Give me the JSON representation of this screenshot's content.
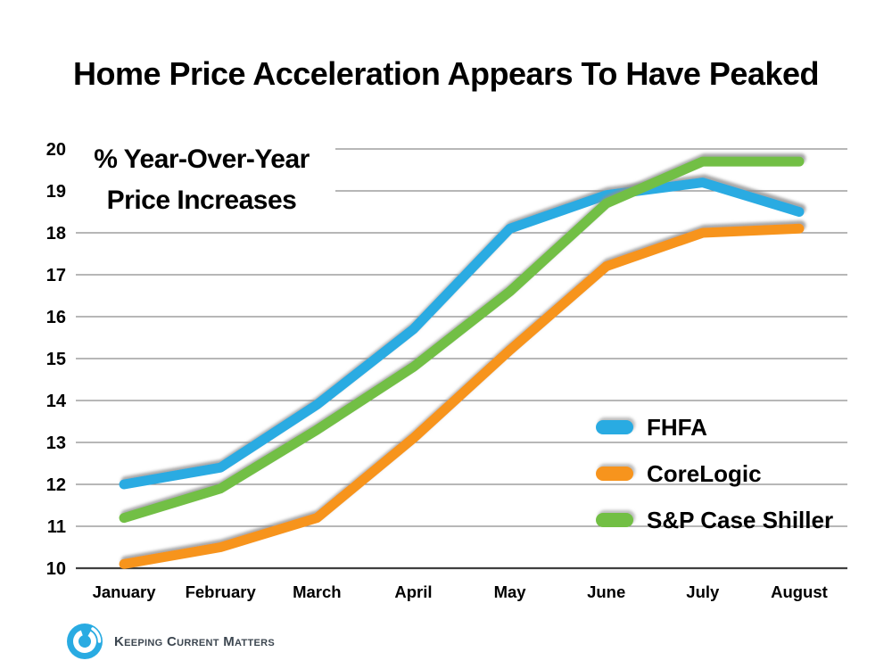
{
  "chart_data": {
    "type": "line",
    "title": "Home Price Acceleration Appears To Have Peaked",
    "annotation_line1": "% Year-Over-Year",
    "annotation_line2": "Price Increases",
    "categories": [
      "January",
      "February",
      "March",
      "April",
      "May",
      "June",
      "July",
      "August"
    ],
    "series": [
      {
        "name": "FHFA",
        "color": "#29ABE2",
        "values": [
          12.0,
          12.4,
          13.9,
          15.7,
          18.1,
          18.9,
          19.2,
          18.5
        ]
      },
      {
        "name": "CoreLogic",
        "color": "#F7941D",
        "values": [
          10.1,
          10.5,
          11.2,
          13.1,
          15.2,
          17.2,
          18.0,
          18.1
        ]
      },
      {
        "name": "S&P Case Shiller",
        "color": "#72BF44",
        "values": [
          11.2,
          11.9,
          13.3,
          14.8,
          16.6,
          18.7,
          19.7,
          19.7
        ]
      }
    ],
    "ylim": [
      10,
      20
    ],
    "ytick_step": 1,
    "grid": true,
    "legend_position": "inside-right",
    "xlabel": "",
    "ylabel": ""
  },
  "footer": {
    "brand": "Keeping Current Matters"
  },
  "colors": {
    "grid": "#8C8C8C",
    "axis": "#404040",
    "text": "#000000",
    "brand_blue": "#29ABE2",
    "brand_text": "#3C4650",
    "background": "#FFFFFF"
  }
}
